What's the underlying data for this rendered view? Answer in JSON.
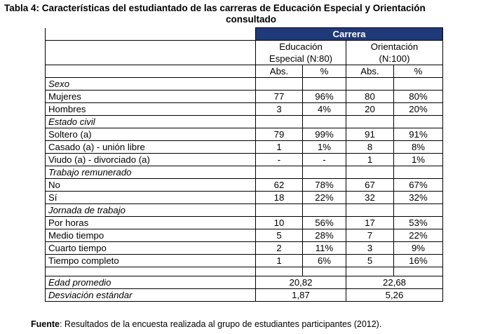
{
  "title": {
    "line1": "Tabla 4: Características del estudiantado de las carreras de Educación Especial y Orientación",
    "line2": "consultado"
  },
  "table": {
    "group_header": "Carrera",
    "careers": [
      {
        "line1": "Educación",
        "line2": "Especial (N:80)"
      },
      {
        "line1": "Orientación",
        "line2": "(N:100)"
      }
    ],
    "subheaders": [
      "Abs.",
      "%",
      "Abs.",
      "%"
    ],
    "sections": [
      {
        "label": "Sexo",
        "rows": [
          {
            "label": "Mujeres",
            "values": [
              "77",
              "96%",
              "80",
              "80%"
            ]
          },
          {
            "label": "Hombres",
            "values": [
              "3",
              "4%",
              "20",
              "20%"
            ]
          }
        ]
      },
      {
        "label": "Estado civil",
        "rows": [
          {
            "label": "Soltero (a)",
            "values": [
              "79",
              "99%",
              "91",
              "91%"
            ]
          },
          {
            "label": "Casado (a) - unión libre",
            "values": [
              "1",
              "1%",
              "8",
              "8%"
            ]
          },
          {
            "label": "Viudo (a) - divorciado (a)",
            "values": [
              "-",
              "-",
              "1",
              "1%"
            ]
          }
        ]
      },
      {
        "label": "Trabajo remunerado",
        "rows": [
          {
            "label": "No",
            "values": [
              "62",
              "78%",
              "67",
              "67%"
            ]
          },
          {
            "label": "Sí",
            "values": [
              "18",
              "22%",
              "32",
              "32%"
            ]
          }
        ]
      },
      {
        "label": "Jornada de trabajo",
        "rows": [
          {
            "label": "Por horas",
            "values": [
              "10",
              "56%",
              "17",
              "53%"
            ]
          },
          {
            "label": "Medio tiempo",
            "values": [
              "5",
              "28%",
              "7",
              "22%"
            ]
          },
          {
            "label": "Cuarto tiempo",
            "values": [
              "2",
              "11%",
              "3",
              "9%"
            ]
          },
          {
            "label": "Tiempo completo",
            "values": [
              "1",
              "6%",
              "5",
              "16%"
            ]
          }
        ]
      }
    ],
    "summary": [
      {
        "label": "Edad promedio",
        "values": [
          "20,82",
          "22,68"
        ]
      },
      {
        "label": "Desviación estándar",
        "values": [
          "1,87",
          "5,26"
        ]
      }
    ]
  },
  "footer": {
    "label": "Fuente",
    "text": ": Resultados de la encuesta realizada al grupo de estudiantes participantes (2012)."
  }
}
